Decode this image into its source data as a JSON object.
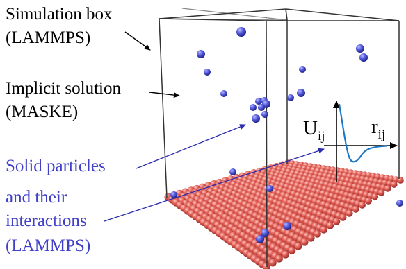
{
  "labels": {
    "simulation_box_line1": "Simulation box",
    "simulation_box_line2": "(LAMMPS)",
    "implicit_solution_line1": "Implicit solution",
    "implicit_solution_line2": "(MASKE)",
    "solid_particles_line1": "Solid particles",
    "solid_particles_line2": "and their",
    "solid_particles_line3": "interactions",
    "solid_particles_line4": "(LAMMPS)"
  },
  "potential_inset": {
    "y_label_main": "U",
    "y_label_sub": "ij",
    "x_label_main": "r",
    "x_label_sub": "ij"
  },
  "colors": {
    "solid_particle": "#4a50d8",
    "substrate_particle": "#e0605a",
    "annotation_text": "#3f3fc8",
    "arrow_blue": "#2a2ab0",
    "potential_curve": "#1a78c8",
    "box_edges": "#333333"
  }
}
